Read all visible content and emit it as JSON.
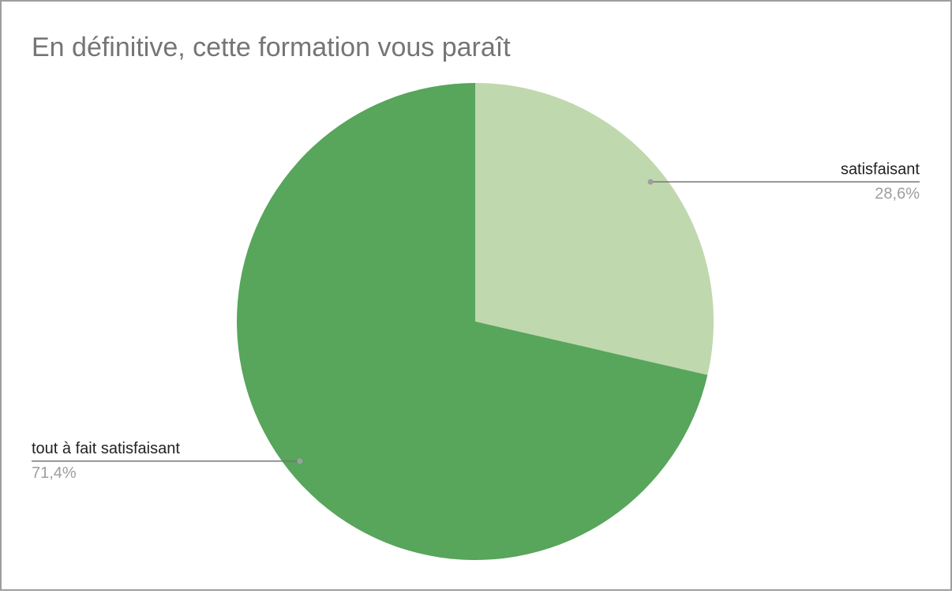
{
  "chart_data": {
    "type": "pie",
    "title": "En définitive, cette formation vous paraît",
    "categories": [
      "satisfaisant",
      "tout à fait satisfaisant"
    ],
    "values": [
      28.6,
      71.4
    ],
    "value_labels": [
      "28,6%",
      "71,4%"
    ],
    "colors": [
      "#bfd8ad",
      "#58a55c"
    ]
  }
}
